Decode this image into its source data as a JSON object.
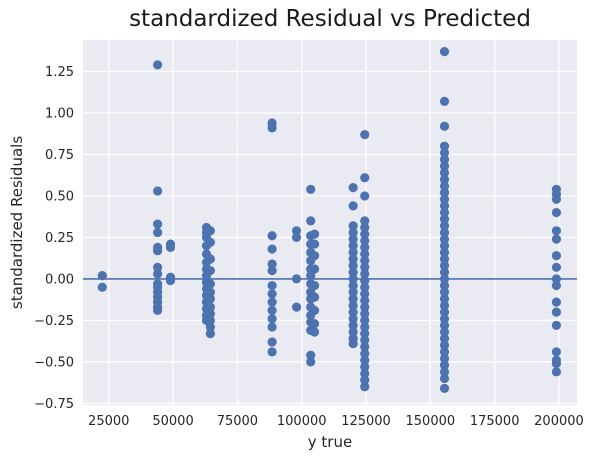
{
  "chart_data": {
    "type": "scatter",
    "title": "standardized Residual vs Predicted",
    "xlabel": "y true",
    "ylabel": "standardized Residuals",
    "xlim": [
      15000,
      207000
    ],
    "ylim": [
      -0.76,
      1.44
    ],
    "xticks": [
      25000,
      50000,
      75000,
      100000,
      125000,
      150000,
      175000,
      200000
    ],
    "xtick_labels": [
      "25000",
      "50000",
      "75000",
      "100000",
      "125000",
      "150000",
      "175000",
      "200000"
    ],
    "yticks": [
      -0.75,
      -0.5,
      -0.25,
      0.0,
      0.25,
      0.5,
      0.75,
      1.0,
      1.25
    ],
    "ytick_labels": [
      "−0.75",
      "−0.50",
      "−0.25",
      "0.00",
      "0.25",
      "0.50",
      "0.75",
      "1.00",
      "1.25"
    ],
    "hline": 0,
    "grid": true,
    "colors": {
      "background": "#eaeaf2",
      "grid": "#ffffff",
      "point": "#4c72b0",
      "line": "#4c72b0"
    },
    "series": [
      {
        "points": [
          [
            22500,
            0.02
          ],
          [
            22500,
            -0.05
          ],
          [
            44000,
            1.29
          ],
          [
            44000,
            0.53
          ],
          [
            44000,
            0.33
          ],
          [
            44000,
            0.28
          ],
          [
            44000,
            0.19
          ],
          [
            44000,
            0.17
          ],
          [
            44000,
            0.07
          ],
          [
            44000,
            0.03
          ],
          [
            44000,
            -0.03
          ],
          [
            44000,
            -0.05
          ],
          [
            44000,
            -0.08
          ],
          [
            44000,
            -0.11
          ],
          [
            44000,
            -0.14
          ],
          [
            44000,
            -0.17
          ],
          [
            44000,
            -0.19
          ],
          [
            49000,
            0.21
          ],
          [
            49000,
            0.19
          ],
          [
            49000,
            0.01
          ],
          [
            49000,
            -0.01
          ],
          [
            63000,
            0.31
          ],
          [
            63000,
            0.28
          ],
          [
            63000,
            0.25
          ],
          [
            63000,
            0.2
          ],
          [
            63000,
            0.15
          ],
          [
            63000,
            0.1
          ],
          [
            63000,
            0.06
          ],
          [
            63000,
            0.02
          ],
          [
            63000,
            -0.02
          ],
          [
            63000,
            -0.06
          ],
          [
            63000,
            -0.1
          ],
          [
            63000,
            -0.14
          ],
          [
            63000,
            -0.18
          ],
          [
            63000,
            -0.22
          ],
          [
            63000,
            -0.25
          ],
          [
            64500,
            0.29
          ],
          [
            64500,
            0.22
          ],
          [
            64500,
            0.12
          ],
          [
            64500,
            0.05
          ],
          [
            64500,
            -0.03
          ],
          [
            64500,
            -0.08
          ],
          [
            64500,
            -0.12
          ],
          [
            64500,
            -0.17
          ],
          [
            64500,
            -0.21
          ],
          [
            64500,
            -0.25
          ],
          [
            64500,
            -0.29
          ],
          [
            64500,
            -0.33
          ],
          [
            88500,
            0.94
          ],
          [
            88500,
            0.91
          ],
          [
            88500,
            0.26
          ],
          [
            88500,
            0.18
          ],
          [
            88500,
            0.09
          ],
          [
            88500,
            0.05
          ],
          [
            88500,
            -0.04
          ],
          [
            88500,
            -0.09
          ],
          [
            88500,
            -0.14
          ],
          [
            88500,
            -0.19
          ],
          [
            88500,
            -0.24
          ],
          [
            88500,
            -0.29
          ],
          [
            88500,
            -0.38
          ],
          [
            88500,
            -0.44
          ],
          [
            98000,
            0.29
          ],
          [
            98000,
            0.25
          ],
          [
            98000,
            0.0
          ],
          [
            98000,
            -0.17
          ],
          [
            103500,
            0.54
          ],
          [
            103500,
            0.35
          ],
          [
            103500,
            0.26
          ],
          [
            103500,
            0.21
          ],
          [
            103500,
            0.16
          ],
          [
            103500,
            0.11
          ],
          [
            103500,
            0.06
          ],
          [
            103500,
            0.02
          ],
          [
            103500,
            -0.03
          ],
          [
            103500,
            -0.08
          ],
          [
            103500,
            -0.12
          ],
          [
            103500,
            -0.17
          ],
          [
            103500,
            -0.22
          ],
          [
            103500,
            -0.26
          ],
          [
            103500,
            -0.31
          ],
          [
            103500,
            -0.46
          ],
          [
            103500,
            -0.5
          ],
          [
            105000,
            0.27
          ],
          [
            105000,
            0.21
          ],
          [
            105000,
            0.14
          ],
          [
            105000,
            0.06
          ],
          [
            105000,
            -0.04
          ],
          [
            105000,
            -0.11
          ],
          [
            105000,
            -0.19
          ],
          [
            105000,
            -0.27
          ],
          [
            105000,
            -0.32
          ],
          [
            120000,
            0.55
          ],
          [
            120000,
            0.44
          ],
          [
            120000,
            0.32
          ],
          [
            120000,
            0.28
          ],
          [
            120000,
            0.24
          ],
          [
            120000,
            0.2
          ],
          [
            120000,
            0.16
          ],
          [
            120000,
            0.12
          ],
          [
            120000,
            0.08
          ],
          [
            120000,
            0.04
          ],
          [
            120000,
            0.0
          ],
          [
            120000,
            -0.04
          ],
          [
            120000,
            -0.08
          ],
          [
            120000,
            -0.12
          ],
          [
            120000,
            -0.16
          ],
          [
            120000,
            -0.2
          ],
          [
            120000,
            -0.24
          ],
          [
            120000,
            -0.28
          ],
          [
            120000,
            -0.32
          ],
          [
            120000,
            -0.36
          ],
          [
            120000,
            -0.39
          ],
          [
            124500,
            0.87
          ],
          [
            124500,
            0.61
          ],
          [
            124500,
            0.5
          ],
          [
            124500,
            0.35
          ],
          [
            124500,
            0.31
          ],
          [
            124500,
            0.27
          ],
          [
            124500,
            0.23
          ],
          [
            124500,
            0.19
          ],
          [
            124500,
            0.15
          ],
          [
            124500,
            0.11
          ],
          [
            124500,
            0.07
          ],
          [
            124500,
            0.03
          ],
          [
            124500,
            -0.01
          ],
          [
            124500,
            -0.05
          ],
          [
            124500,
            -0.09
          ],
          [
            124500,
            -0.13
          ],
          [
            124500,
            -0.17
          ],
          [
            124500,
            -0.21
          ],
          [
            124500,
            -0.25
          ],
          [
            124500,
            -0.29
          ],
          [
            124500,
            -0.33
          ],
          [
            124500,
            -0.37
          ],
          [
            124500,
            -0.41
          ],
          [
            124500,
            -0.45
          ],
          [
            124500,
            -0.49
          ],
          [
            124500,
            -0.53
          ],
          [
            124500,
            -0.57
          ],
          [
            124500,
            -0.61
          ],
          [
            124500,
            -0.65
          ],
          [
            155500,
            1.37
          ],
          [
            155500,
            1.07
          ],
          [
            155500,
            0.92
          ],
          [
            155500,
            0.8
          ],
          [
            155500,
            0.76
          ],
          [
            155500,
            0.72
          ],
          [
            155500,
            0.68
          ],
          [
            155500,
            0.64
          ],
          [
            155500,
            0.6
          ],
          [
            155500,
            0.56
          ],
          [
            155500,
            0.52
          ],
          [
            155500,
            0.48
          ],
          [
            155500,
            0.44
          ],
          [
            155500,
            0.4
          ],
          [
            155500,
            0.36
          ],
          [
            155500,
            0.32
          ],
          [
            155500,
            0.28
          ],
          [
            155500,
            0.24
          ],
          [
            155500,
            0.2
          ],
          [
            155500,
            0.16
          ],
          [
            155500,
            0.12
          ],
          [
            155500,
            0.08
          ],
          [
            155500,
            0.04
          ],
          [
            155500,
            0.0
          ],
          [
            155500,
            -0.04
          ],
          [
            155500,
            -0.08
          ],
          [
            155500,
            -0.12
          ],
          [
            155500,
            -0.16
          ],
          [
            155500,
            -0.2
          ],
          [
            155500,
            -0.24
          ],
          [
            155500,
            -0.28
          ],
          [
            155500,
            -0.32
          ],
          [
            155500,
            -0.36
          ],
          [
            155500,
            -0.4
          ],
          [
            155500,
            -0.44
          ],
          [
            155500,
            -0.48
          ],
          [
            155500,
            -0.52
          ],
          [
            155500,
            -0.56
          ],
          [
            155500,
            -0.6
          ],
          [
            155500,
            -0.66
          ],
          [
            199000,
            0.54
          ],
          [
            199000,
            0.51
          ],
          [
            199000,
            0.48
          ],
          [
            199000,
            0.4
          ],
          [
            199000,
            0.29
          ],
          [
            199000,
            0.24
          ],
          [
            199000,
            0.14
          ],
          [
            199000,
            0.07
          ],
          [
            199000,
            0.0
          ],
          [
            199000,
            -0.04
          ],
          [
            199000,
            -0.14
          ],
          [
            199000,
            -0.2
          ],
          [
            199000,
            -0.28
          ],
          [
            199000,
            -0.44
          ],
          [
            199000,
            -0.49
          ],
          [
            199000,
            -0.51
          ],
          [
            199000,
            -0.56
          ]
        ]
      }
    ]
  }
}
